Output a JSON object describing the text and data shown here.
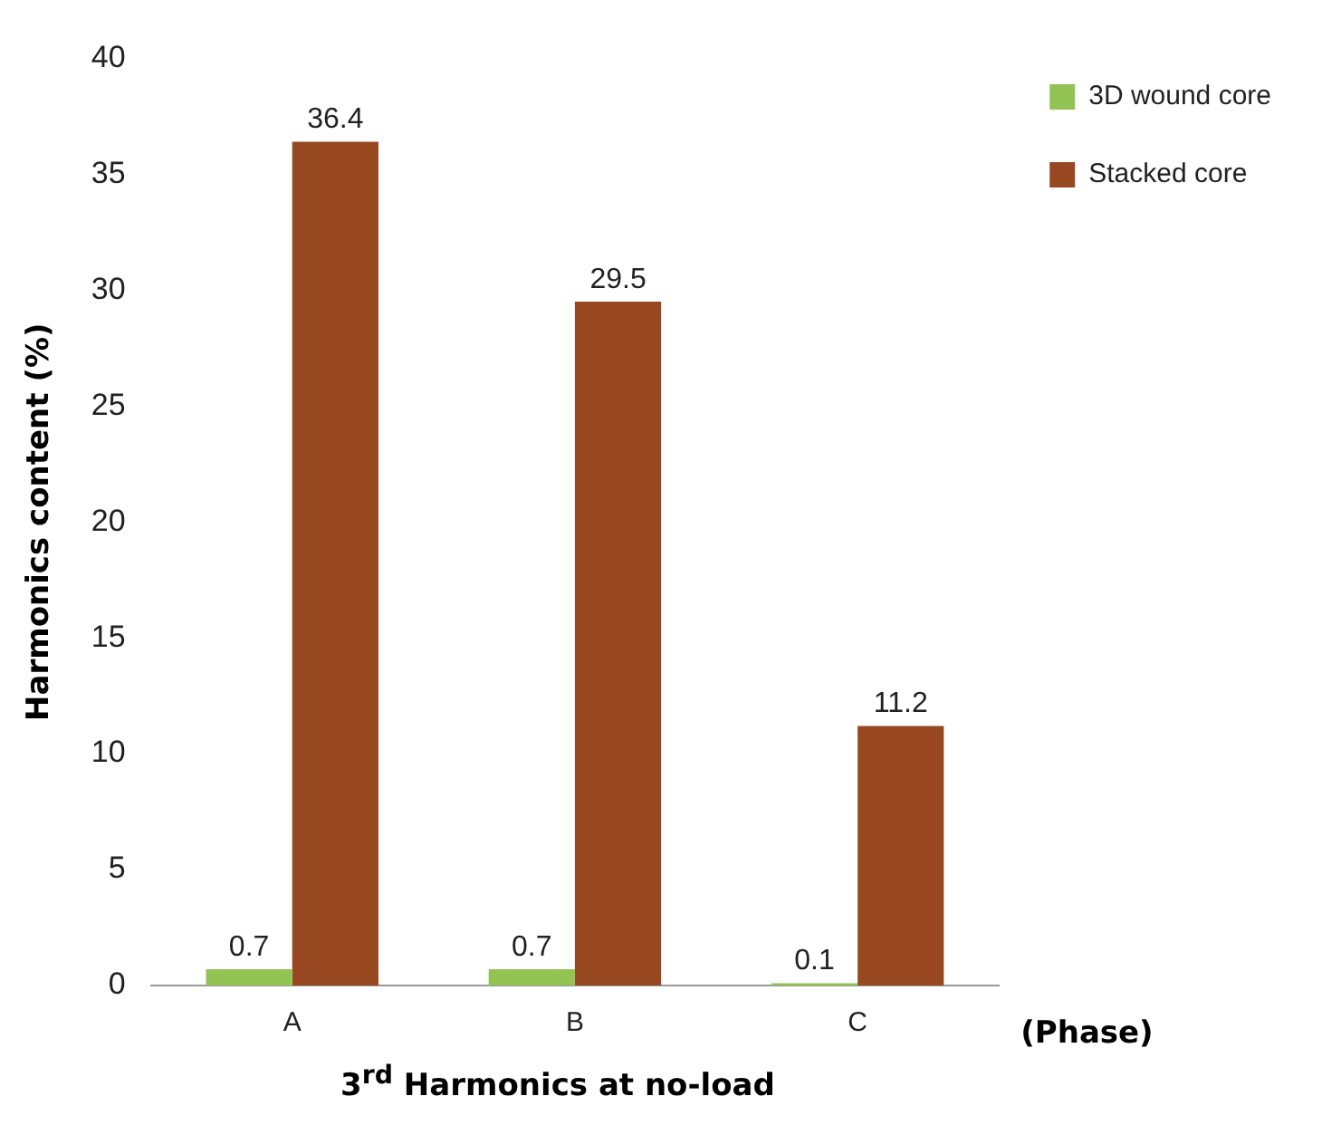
{
  "chart_data": {
    "type": "bar",
    "xlabel": "3$^{rd}$ Harmonics at no-load",
    "ylabel": "Harmonics content (%)",
    "categories": [
      "A",
      "B",
      "C"
    ],
    "series": [
      {
        "name": "3D wound core",
        "color": "#92c353",
        "values": [
          0.7,
          0.7,
          0.1
        ]
      },
      {
        "name": "Stacked core",
        "color": "#984820",
        "values": [
          36.4,
          29.5,
          11.2
        ]
      }
    ],
    "ylim": [
      0,
      40
    ],
    "yticks": [
      0,
      5,
      10,
      15,
      20,
      25,
      30,
      35,
      40
    ],
    "grid": false,
    "legend": "top right",
    "data_labels": true,
    "annotations": [
      "(Phase)"
    ]
  }
}
